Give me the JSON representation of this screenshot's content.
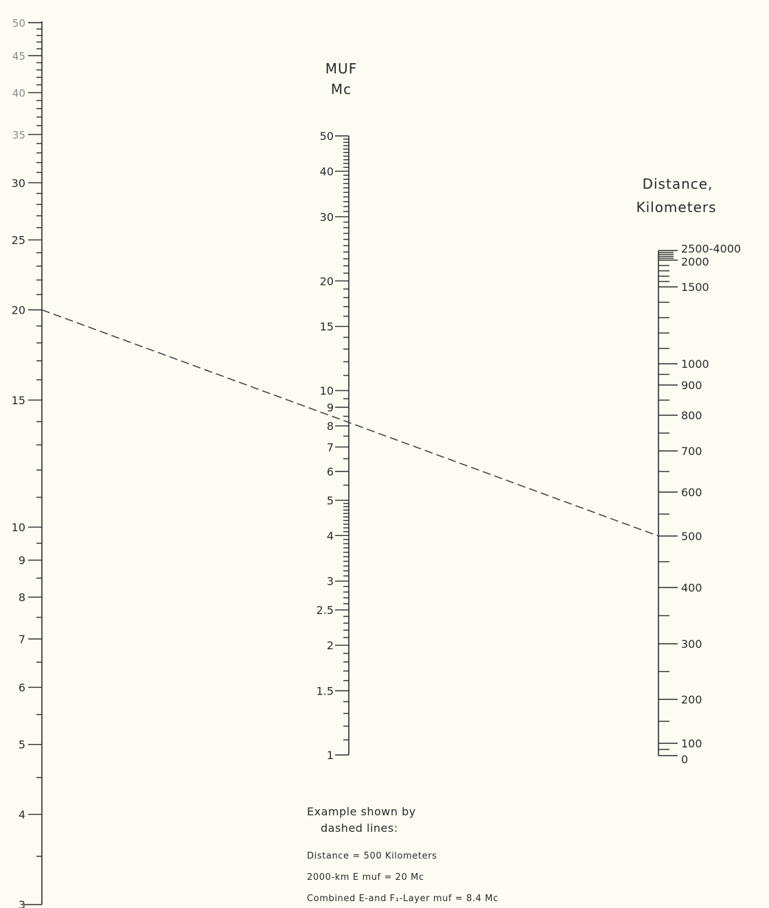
{
  "left_scale": {
    "labels": [
      "50",
      "45",
      "40",
      "35",
      "30",
      "25",
      "20",
      "15",
      "10",
      "9",
      "8",
      "7",
      "6",
      "5",
      "4",
      "3"
    ],
    "minor": [
      3.5,
      4.5,
      5.5,
      6.5,
      7.5,
      8.5,
      9.5,
      11,
      12,
      13,
      14,
      16,
      17,
      18,
      19,
      21,
      22,
      23,
      24,
      26,
      27,
      28,
      29,
      31,
      32,
      33,
      34,
      36,
      37,
      38,
      39,
      41,
      42,
      43,
      44,
      46,
      47,
      48,
      49
    ]
  },
  "middle_scale": {
    "title_line1": "MUF",
    "title_line2": "Mc",
    "labels": [
      "50",
      "40",
      "30",
      "20",
      "15",
      "10",
      "9",
      "8",
      "7",
      "6",
      "5",
      "4",
      "3",
      "2.5",
      "2",
      "1.5",
      "1"
    ]
  },
  "right_scale": {
    "title_line1": "Distance,",
    "title_line2": "Kilometers",
    "labels": [
      "2500-4000",
      "2000",
      "1500",
      "1000",
      "900",
      "800",
      "700",
      "600",
      "500",
      "400",
      "300",
      "200",
      "100",
      "0"
    ]
  },
  "example": {
    "heading_line1": "Example shown by",
    "heading_line2": "dashed lines:",
    "line1": "Distance = 500 Kilometers",
    "line2": "2000-km  E muf = 20 Mc",
    "line3": "Combined  E-and  F₁-Layer  muf = 8.4 Mc",
    "left_value": 20,
    "middle_value": 8.4,
    "right_value": 500
  }
}
